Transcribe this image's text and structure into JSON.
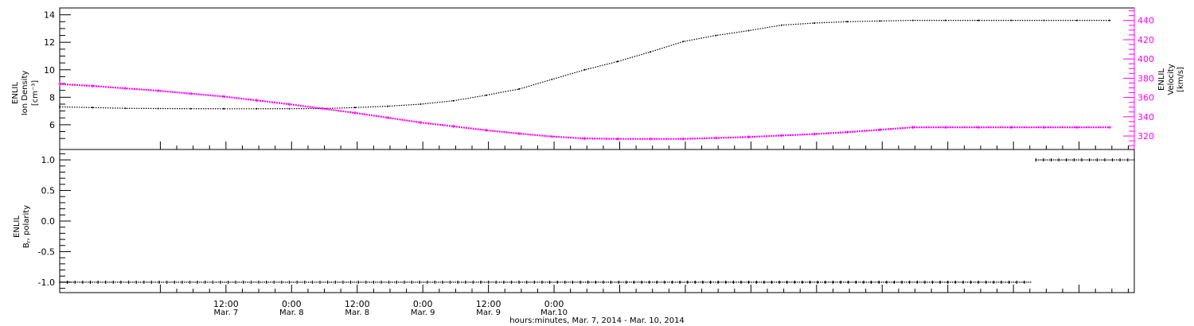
{
  "chart_data": [
    {
      "type": "line",
      "ylabel_lines": [
        "ENLIL",
        "Ion Density",
        "[cm⁻³]"
      ],
      "y2label_lines": [
        "ENLIL",
        "Velocity",
        "[km/s]"
      ],
      "ylim": [
        4.2,
        14.5
      ],
      "y_ticks": [
        6,
        8,
        10,
        12,
        14
      ],
      "y2lim": [
        306,
        453
      ],
      "y2_ticks": [
        320,
        340,
        360,
        380,
        400,
        420,
        440
      ],
      "series": [
        {
          "axis": "left",
          "color": "#000000",
          "x": [
            0,
            6,
            12,
            18,
            24,
            30,
            36,
            42,
            48,
            54,
            60,
            66,
            72,
            78,
            84,
            90,
            96,
            102,
            108,
            114,
            120,
            126,
            132,
            138,
            144,
            150,
            156,
            162,
            168,
            174,
            180,
            186,
            192
          ],
          "values": [
            7.3,
            7.25,
            7.2,
            7.18,
            7.17,
            7.16,
            7.16,
            7.17,
            7.18,
            7.25,
            7.35,
            7.5,
            7.75,
            8.15,
            8.6,
            9.3,
            10.0,
            10.6,
            11.3,
            12.05,
            12.5,
            12.85,
            13.25,
            13.4,
            13.5,
            13.55,
            13.6,
            13.6,
            13.6,
            13.6,
            13.6,
            13.6,
            13.6
          ]
        },
        {
          "axis": "right",
          "color": "#ff00ff",
          "x": [
            0,
            6,
            12,
            18,
            24,
            30,
            36,
            42,
            48,
            54,
            60,
            66,
            72,
            78,
            84,
            90,
            96,
            102,
            108,
            114,
            120,
            126,
            132,
            138,
            144,
            150,
            156,
            162,
            168,
            174,
            180,
            186,
            192
          ],
          "values": [
            374,
            372,
            369.5,
            367,
            364,
            361,
            357,
            353,
            348.5,
            344,
            339,
            334,
            330,
            326,
            322.5,
            319.5,
            317.5,
            317,
            317,
            317,
            318,
            319,
            320.5,
            322,
            324,
            326.5,
            329,
            329,
            329,
            329,
            329,
            329,
            329
          ]
        }
      ]
    },
    {
      "type": "line",
      "ylabel_lines": [
        "ENLIL",
        "B",
        "r",
        ", polarity"
      ],
      "ylim": [
        -1.17,
        1.17
      ],
      "y_ticks": [
        -1.0,
        -0.5,
        0.0,
        0.5,
        1.0
      ],
      "y_tick_labels": [
        "-1.0",
        "-0.5",
        "0.0",
        "0.5",
        "1.0"
      ],
      "series": [
        {
          "color": "#000000",
          "x": [
            0,
            6,
            12,
            18,
            24,
            30,
            36,
            42,
            48,
            54,
            60,
            66,
            72,
            78,
            84,
            90,
            96,
            102,
            108,
            114,
            120,
            126,
            132,
            138,
            144,
            150,
            156,
            162,
            168,
            174,
            180,
            186,
            192,
            198,
            204,
            210,
            216,
            222,
            228,
            234,
            240,
            246,
            252,
            258,
            264,
            270,
            276,
            282,
            288,
            294,
            300,
            306,
            312,
            318,
            324,
            330,
            336,
            342,
            348,
            354,
            360,
            366,
            372,
            378,
            384,
            390,
            396,
            402,
            408,
            414,
            420,
            426,
            432,
            438,
            444,
            450,
            456,
            462,
            468,
            474,
            480,
            486,
            492,
            498,
            504,
            510,
            516,
            522,
            528,
            534,
            540,
            546,
            552,
            558,
            564,
            570,
            576,
            582,
            588,
            594,
            600,
            606,
            612,
            618,
            624,
            630,
            636,
            642,
            648,
            654,
            660,
            666,
            672,
            678,
            684,
            690,
            696,
            702,
            708,
            714,
            720
          ],
          "values": [
            -1,
            -1,
            -1,
            -1,
            -1,
            -1,
            -1,
            -1,
            -1,
            -1,
            -1,
            -1,
            -1,
            -1,
            -1,
            -1,
            -1,
            -1,
            -1,
            -1,
            -1,
            -1,
            -1,
            -1,
            -1,
            -1,
            -1,
            -1,
            -1,
            -1,
            -1,
            -1,
            -1,
            -1,
            -1,
            -1,
            -1,
            -1,
            -1,
            -1,
            -1,
            -1,
            -1,
            -1,
            -1,
            -1,
            -1,
            -1,
            -1,
            -1,
            -1,
            -1,
            -1,
            -1,
            -1,
            -1,
            -1,
            -1,
            -1,
            -1,
            -1,
            -1,
            -1,
            -1,
            -1,
            -1,
            -1,
            -1,
            -1,
            -1,
            -1,
            -1,
            -1,
            -1,
            -1,
            -1,
            -1,
            -1,
            -1,
            -1,
            -1,
            -1,
            -1,
            -1,
            -1,
            -1,
            -1,
            -1,
            -1,
            -1,
            -1,
            -1,
            -1,
            -1,
            -1,
            -1,
            -1,
            -1,
            -1,
            -1,
            -1,
            -1,
            -1,
            -1,
            -1,
            -1,
            -1,
            -1,
            -1,
            -1,
            -1,
            -1,
            -1,
            -1,
            -1,
            -1,
            -1,
            -1,
            -1,
            -1,
            -1
          ]
        },
        {
          "color": "#000000",
          "x": [
            0,
            6,
            12,
            18,
            24,
            30,
            36,
            42,
            48,
            54,
            60,
            66,
            72,
            78,
            84,
            90,
            96,
            102,
            108,
            114,
            120,
            126,
            132,
            138,
            144,
            150,
            156,
            162,
            168,
            174,
            180,
            186,
            192,
            198,
            204,
            210,
            216,
            222,
            228,
            234,
            240,
            246,
            252,
            258,
            264,
            270,
            276,
            282,
            288,
            294,
            300,
            306,
            312,
            318,
            324,
            330,
            336,
            342,
            348,
            354,
            360,
            366,
            372,
            378,
            384,
            390,
            396,
            402,
            408,
            414,
            420,
            426,
            432,
            438,
            444,
            450,
            456,
            462,
            468,
            474,
            480,
            486,
            492,
            498,
            504,
            510,
            516,
            522,
            528,
            534,
            540,
            546,
            552,
            558,
            564,
            570
          ],
          "values": [
            1,
            1,
            1,
            1,
            1,
            1,
            1,
            1,
            1,
            1,
            1,
            1,
            1,
            1,
            1,
            1,
            1,
            1,
            1,
            1,
            1,
            1,
            1,
            1,
            1,
            1,
            1,
            1,
            1,
            1,
            1,
            1,
            1,
            1,
            1,
            1,
            1,
            1,
            1,
            1,
            1,
            1,
            1,
            1,
            1,
            1,
            1,
            1,
            1,
            1,
            1,
            1,
            1,
            1,
            1,
            1,
            1,
            1,
            1,
            1,
            1,
            1,
            1,
            1,
            1,
            1,
            1,
            1,
            1,
            1,
            1,
            1,
            1,
            1,
            1,
            1,
            1,
            1,
            1,
            1,
            1,
            1,
            1,
            1,
            1,
            1,
            1,
            1,
            1,
            1,
            1,
            1,
            1,
            1,
            1,
            1
          ]
        }
      ]
    }
  ],
  "x_axis": {
    "ticks": [
      {
        "time": "12:00",
        "day": "Mar. 7"
      },
      {
        "time": "0:00",
        "day": "Mar. 8"
      },
      {
        "time": "12:00",
        "day": "Mar. 8"
      },
      {
        "time": "0:00",
        "day": "Mar. 9"
      },
      {
        "time": "12:00",
        "day": "Mar. 9"
      },
      {
        "time": "0:00",
        "day": "Mar.10"
      }
    ],
    "title": "hours:minutes, Mar.  7, 2014 - Mar. 10, 2014"
  }
}
